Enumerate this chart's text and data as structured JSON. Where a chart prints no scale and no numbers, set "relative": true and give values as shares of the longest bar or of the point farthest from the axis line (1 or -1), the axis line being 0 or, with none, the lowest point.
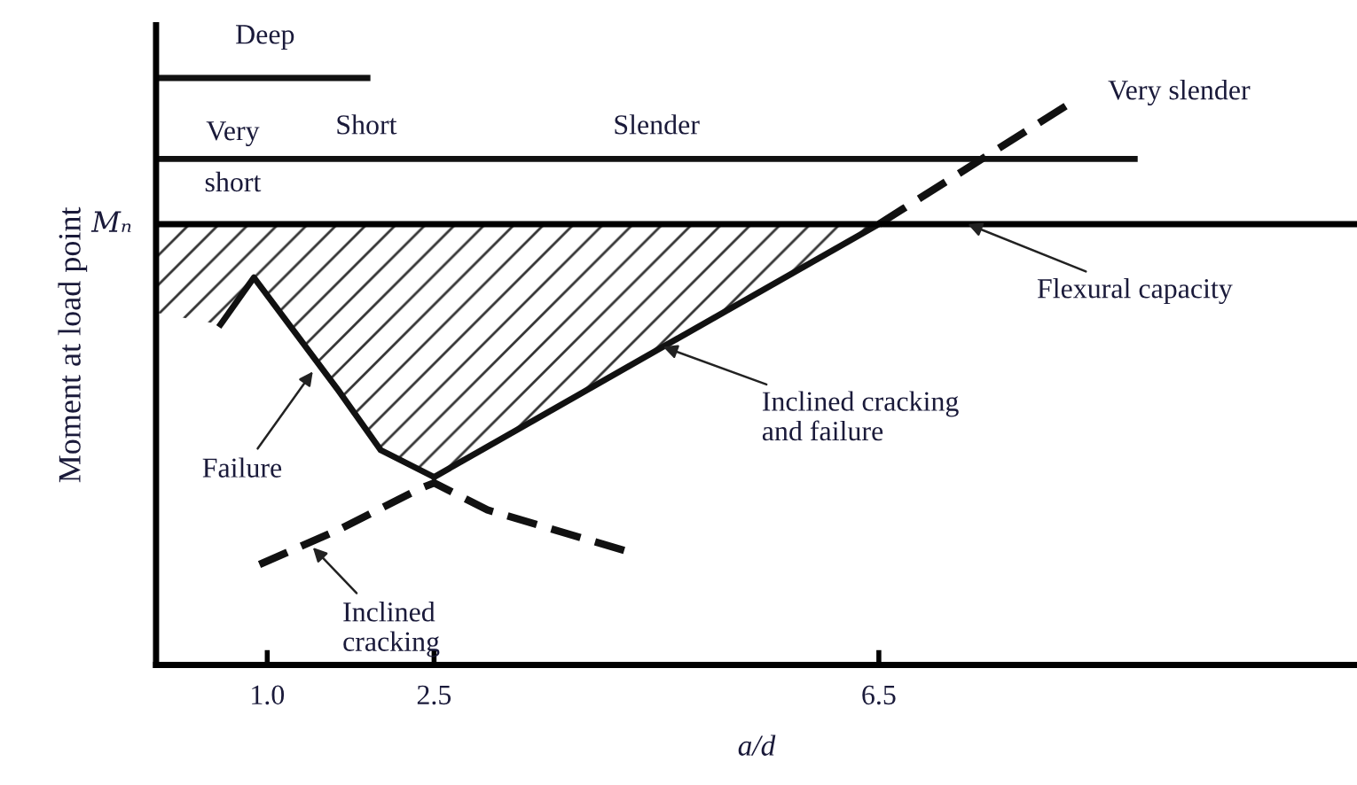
{
  "chart_data": {
    "type": "line",
    "relative": true,
    "xlabel": "a/d",
    "ylabel": "Moment at load point",
    "xlim": [
      0,
      10.8
    ],
    "xticks": [
      {
        "value": 1.0,
        "label": "1.0"
      },
      {
        "value": 2.5,
        "label": "2.5"
      },
      {
        "value": 6.5,
        "label": "6.5"
      }
    ],
    "ref_lines": [
      {
        "axis": "y",
        "value": 0.751,
        "label": "Mₙ",
        "color": "#000000"
      }
    ],
    "series": [
      {
        "color": "#111111",
        "x": [
          0.58,
          0.88,
          1.65,
          2.02,
          2.5
        ],
        "values": [
          0.58,
          0.66,
          0.465,
          0.366,
          0.32
        ]
      },
      {
        "color": "#111111",
        "x": [
          2.5,
          6.5
        ],
        "values": [
          0.32,
          0.751
        ]
      },
      {
        "color": "#111111",
        "line_style": "dashed",
        "x": [
          0.93,
          1.65,
          2.37,
          2.5,
          2.98,
          4.21
        ],
        "values": [
          0.171,
          0.231,
          0.3,
          0.31,
          0.264,
          0.195
        ]
      },
      {
        "color": "#111111",
        "line_style": "dashed",
        "x": [
          6.5,
          8.18
        ],
        "values": [
          0.751,
          0.952
        ]
      },
      {
        "color": "#111111",
        "x": [
          0,
          1.9
        ],
        "values": [
          1.0,
          1.0
        ]
      },
      {
        "color": "#111111",
        "x": [
          0,
          8.8
        ],
        "values": [
          0.862,
          0.862
        ]
      }
    ],
    "annotations": [
      "Deep",
      "Very\nshort",
      "Short",
      "Slender",
      "Very slender",
      {
        "text": "Flexural capacity",
        "x": 7.3,
        "y": 0.751
      },
      {
        "text": "Inclined cracking\nand failure",
        "x": 4.56,
        "y": 0.542
      },
      {
        "text": "Failure",
        "x": 1.41,
        "y": 0.5
      },
      {
        "text": "Inclined\ncracking",
        "x": 1.41,
        "y": 0.2
      }
    ]
  }
}
